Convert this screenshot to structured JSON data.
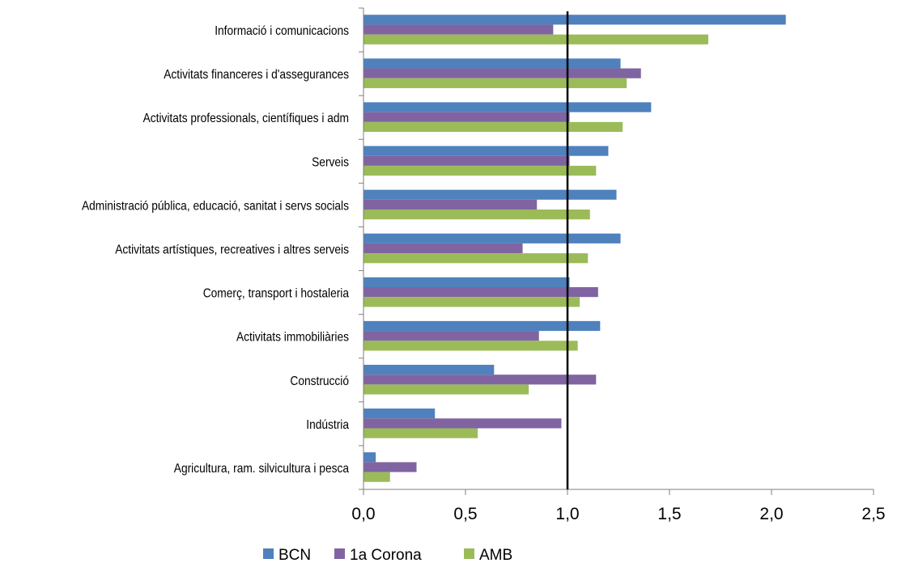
{
  "chart_data": {
    "type": "bar",
    "orientation": "horizontal",
    "categories": [
      "Informació i comunicacions",
      "Activitats financeres i d'assegurances",
      "Activitats professionals, científiques i adm",
      "Serveis",
      "Administració pública, educació, sanitat i servs socials",
      "Activitats artístiques, recreatives i altres serveis",
      "Comerç, transport i hostaleria",
      "Activitats immobiliàries",
      "Construcció",
      "Indústria",
      "Agricultura, ram. silvicultura i pesca"
    ],
    "series": [
      {
        "name": "BCN",
        "color": "#4F81BD",
        "values": [
          2.07,
          1.26,
          1.41,
          1.2,
          1.24,
          1.26,
          1.01,
          1.16,
          0.64,
          0.35,
          0.06
        ]
      },
      {
        "name": "1a Corona",
        "color": "#8064A2",
        "values": [
          0.93,
          1.36,
          1.01,
          1.01,
          0.85,
          0.78,
          1.15,
          0.86,
          1.14,
          0.97,
          0.26
        ]
      },
      {
        "name": "AMB",
        "color": "#9BBB59",
        "values": [
          1.69,
          1.29,
          1.27,
          1.14,
          1.11,
          1.1,
          1.06,
          1.05,
          0.81,
          0.56,
          0.13
        ]
      }
    ],
    "xlim": [
      0,
      2.5
    ],
    "xticks": [
      "0,0",
      "0,5",
      "1,0",
      "1,5",
      "2,0",
      "2,5"
    ],
    "reference_line": 1.0,
    "legend_position": "bottom",
    "grid": false,
    "title": "",
    "xlabel": "",
    "ylabel": ""
  }
}
